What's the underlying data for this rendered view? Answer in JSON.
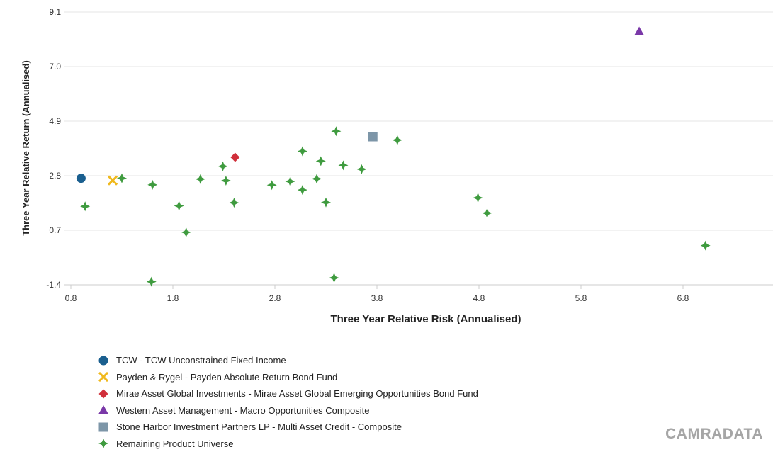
{
  "chart_data": {
    "type": "scatter",
    "xlabel": "Three Year Relative Risk (Annualised)",
    "ylabel": "Three Year Relative Return (Annualised)",
    "xlim": [
      0.8,
      7.6
    ],
    "ylim": [
      -1.4,
      9.1
    ],
    "x_ticks": [
      "0.8",
      "1.8",
      "2.8",
      "3.8",
      "4.8",
      "5.8",
      "6.8"
    ],
    "y_ticks": [
      "9.1",
      "7.0",
      "4.9",
      "2.8",
      "0.7",
      "-1.4"
    ],
    "grid": "horizontal",
    "legend_position": "bottom-left",
    "series": [
      {
        "name": "TCW - TCW Unconstrained Fixed Income",
        "marker": "circle",
        "color": "#1a5f8f",
        "points": [
          [
            0.9,
            2.7
          ]
        ]
      },
      {
        "name": "Payden & Rygel - Payden Absolute Return Bond Fund",
        "marker": "x",
        "color": "#f0b91e",
        "points": [
          [
            1.21,
            2.62
          ]
        ]
      },
      {
        "name": "Mirae Asset Global Investments - Mirae Asset Global Emerging Opportunities Bond Fund",
        "marker": "diamond",
        "color": "#d02f3a",
        "points": [
          [
            2.41,
            3.51
          ]
        ]
      },
      {
        "name": "Western Asset Management - Macro Opportunities Composite",
        "marker": "triangle",
        "color": "#7a38a8",
        "points": [
          [
            6.37,
            8.35
          ]
        ]
      },
      {
        "name": "Stone Harbor Investment Partners LP - Multi Asset Credit - Composite",
        "marker": "square",
        "color": "#7d96a8",
        "points": [
          [
            3.76,
            4.3
          ]
        ]
      },
      {
        "name": "Remaining Product Universe",
        "marker": "star4",
        "color": "#3f9b3f",
        "points": [
          [
            0.94,
            1.62
          ],
          [
            1.3,
            2.7
          ],
          [
            1.6,
            2.45
          ],
          [
            1.59,
            -1.28
          ],
          [
            1.86,
            1.64
          ],
          [
            1.93,
            0.62
          ],
          [
            2.07,
            2.67
          ],
          [
            2.29,
            3.16
          ],
          [
            2.32,
            2.61
          ],
          [
            2.4,
            1.76
          ],
          [
            2.77,
            2.44
          ],
          [
            2.95,
            2.58
          ],
          [
            3.07,
            2.25
          ],
          [
            3.07,
            3.74
          ],
          [
            3.21,
            2.68
          ],
          [
            3.25,
            3.36
          ],
          [
            3.3,
            1.77
          ],
          [
            3.4,
            4.51
          ],
          [
            3.38,
            -1.13
          ],
          [
            3.47,
            3.2
          ],
          [
            3.65,
            3.05
          ],
          [
            4.0,
            4.17
          ],
          [
            4.79,
            1.95
          ],
          [
            4.88,
            1.36
          ],
          [
            7.02,
            0.11
          ]
        ]
      }
    ]
  },
  "brand": "CAMRADATA"
}
